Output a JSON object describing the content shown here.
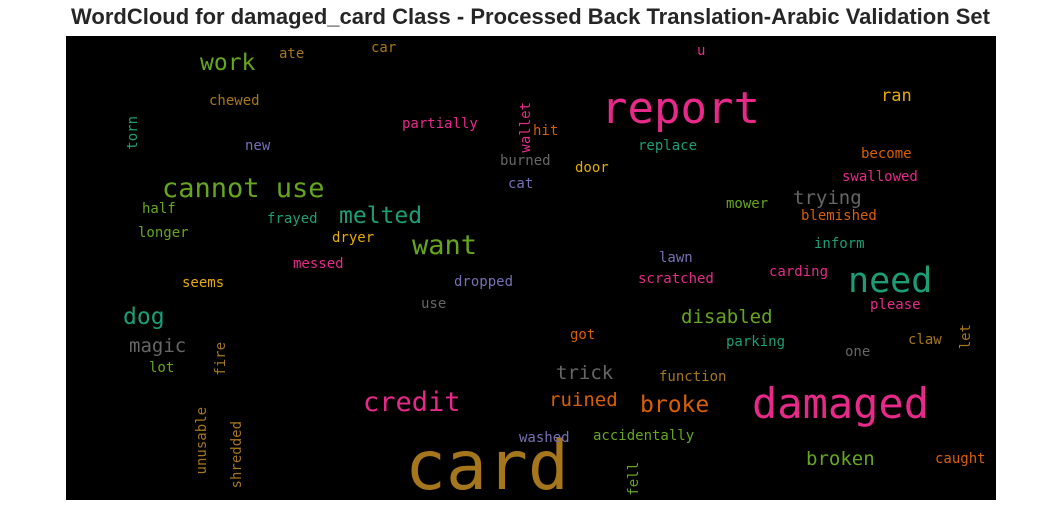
{
  "chart_data": {
    "type": "wordcloud",
    "title": "WordCloud for damaged_card Class - Processed Back Translation-Arabic Validation Set",
    "background": "#000000",
    "colors": {
      "gold": "#A6761D",
      "pink": "#E7298A",
      "green": "#66A61E",
      "teal": "#1B9E77",
      "purple": "#7570B3",
      "orange": "#D95F02",
      "amber": "#E6AB02",
      "gray": "#666666"
    },
    "words": [
      {
        "text": "card",
        "color": "gold"
      },
      {
        "text": "report",
        "color": "pink"
      },
      {
        "text": "damaged",
        "color": "pink"
      },
      {
        "text": "need",
        "color": "teal"
      },
      {
        "text": "cannot use",
        "color": "green"
      },
      {
        "text": "want",
        "color": "green"
      },
      {
        "text": "credit",
        "color": "pink"
      },
      {
        "text": "melted",
        "color": "teal"
      },
      {
        "text": "work",
        "color": "green"
      },
      {
        "text": "dog",
        "color": "teal"
      },
      {
        "text": "broke",
        "color": "orange"
      },
      {
        "text": "magic",
        "color": "gray"
      },
      {
        "text": "trying",
        "color": "gray"
      },
      {
        "text": "disabled",
        "color": "green"
      },
      {
        "text": "trick",
        "color": "gray"
      },
      {
        "text": "ruined",
        "color": "orange"
      },
      {
        "text": "broken",
        "color": "green"
      },
      {
        "text": "ran",
        "color": "amber"
      },
      {
        "text": "partially",
        "color": "pink"
      },
      {
        "text": "replace",
        "color": "teal"
      },
      {
        "text": "become",
        "color": "orange"
      },
      {
        "text": "swallowed",
        "color": "pink"
      },
      {
        "text": "blemished",
        "color": "orange"
      },
      {
        "text": "burned",
        "color": "gray"
      },
      {
        "text": "door",
        "color": "amber"
      },
      {
        "text": "cat",
        "color": "purple"
      },
      {
        "text": "mower",
        "color": "green"
      },
      {
        "text": "inform",
        "color": "teal"
      },
      {
        "text": "frayed",
        "color": "teal"
      },
      {
        "text": "dryer",
        "color": "amber"
      },
      {
        "text": "half",
        "color": "green"
      },
      {
        "text": "longer",
        "color": "green"
      },
      {
        "text": "new",
        "color": "purple"
      },
      {
        "text": "chewed",
        "color": "gold"
      },
      {
        "text": "hit",
        "color": "orange"
      },
      {
        "text": "wallet",
        "color": "pink"
      },
      {
        "text": "torn",
        "color": "teal"
      },
      {
        "text": "ate",
        "color": "gold"
      },
      {
        "text": "car",
        "color": "gold"
      },
      {
        "text": "u",
        "color": "pink"
      },
      {
        "text": "lawn",
        "color": "purple"
      },
      {
        "text": "messed",
        "color": "pink"
      },
      {
        "text": "carding",
        "color": "pink"
      },
      {
        "text": "seems",
        "color": "amber"
      },
      {
        "text": "dropped",
        "color": "purple"
      },
      {
        "text": "scratched",
        "color": "pink"
      },
      {
        "text": "please",
        "color": "pink"
      },
      {
        "text": "use",
        "color": "gray"
      },
      {
        "text": "got",
        "color": "orange"
      },
      {
        "text": "parking",
        "color": "teal"
      },
      {
        "text": "claw",
        "color": "gold"
      },
      {
        "text": "one",
        "color": "gray"
      },
      {
        "text": "let",
        "color": "gold"
      },
      {
        "text": "fire",
        "color": "gold"
      },
      {
        "text": "lot",
        "color": "green"
      },
      {
        "text": "unusable",
        "color": "gold"
      },
      {
        "text": "shredded",
        "color": "gold"
      },
      {
        "text": "function",
        "color": "gold"
      },
      {
        "text": "washed",
        "color": "purple"
      },
      {
        "text": "accidentally",
        "color": "green"
      },
      {
        "text": "fell",
        "color": "green"
      },
      {
        "text": "caught",
        "color": "orange"
      }
    ]
  }
}
